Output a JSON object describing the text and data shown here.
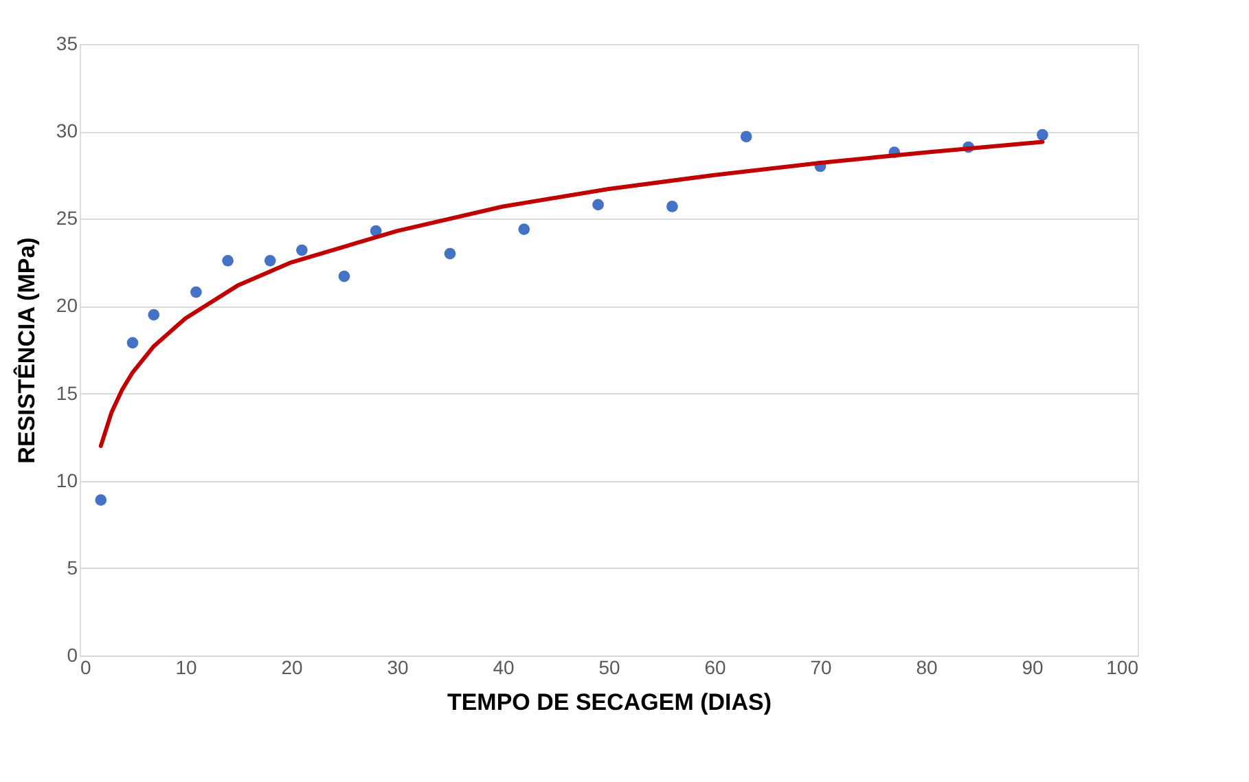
{
  "chart_data": {
    "type": "scatter",
    "xlabel": "TEMPO DE SECAGEM (DIAS)",
    "ylabel": "RESISTÊNCIA (MPa)",
    "xlim": [
      0,
      100
    ],
    "xticks": [
      0,
      10,
      20,
      30,
      40,
      50,
      60,
      70,
      80,
      90,
      100
    ],
    "ylim": [
      0,
      35
    ],
    "yticks": [
      0,
      5,
      10,
      15,
      20,
      25,
      30,
      35
    ],
    "grid": "y",
    "legend": false,
    "series": [
      {
        "color": "#4472c4",
        "marker": "circle",
        "x": [
          2,
          5,
          7,
          11,
          14,
          18,
          21,
          25,
          28,
          35,
          42,
          49,
          56,
          63,
          70,
          77,
          84,
          91
        ],
        "values": [
          8.9,
          17.9,
          19.5,
          20.8,
          22.6,
          22.6,
          23.2,
          21.7,
          24.3,
          23.0,
          24.4,
          25.8,
          25.7,
          29.7,
          28.0,
          28.8,
          29.1,
          29.8
        ]
      },
      {
        "type": "line",
        "color": "#c00000",
        "line_style": "solid",
        "x": [
          2,
          3,
          4,
          5,
          7,
          10,
          15,
          20,
          30,
          40,
          50,
          60,
          70,
          80,
          91
        ],
        "values": [
          12.0,
          13.9,
          15.2,
          16.2,
          17.7,
          19.3,
          21.2,
          22.5,
          24.3,
          25.7,
          26.7,
          27.5,
          28.2,
          28.8,
          29.4
        ]
      }
    ]
  }
}
